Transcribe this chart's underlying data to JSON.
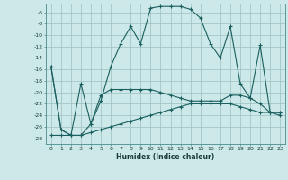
{
  "xlabel": "Humidex (Indice chaleur)",
  "ylabel": "",
  "background_color": "#cce8e8",
  "grid_color": "#9bbfbf",
  "line_color": "#1a5f5f",
  "xlim": [
    -0.5,
    23.5
  ],
  "ylim": [
    -29,
    -4.5
  ],
  "xticks": [
    0,
    1,
    2,
    3,
    4,
    5,
    6,
    7,
    8,
    9,
    10,
    11,
    12,
    13,
    14,
    15,
    16,
    17,
    18,
    19,
    20,
    21,
    22,
    23
  ],
  "yticks": [
    -28,
    -26,
    -24,
    -22,
    -20,
    -18,
    -16,
    -14,
    -12,
    -10,
    -8,
    -6
  ],
  "series1": [
    [
      0,
      -15.5
    ],
    [
      1,
      -26.5
    ],
    [
      2,
      -27.5
    ],
    [
      3,
      -18.5
    ],
    [
      4,
      -25.5
    ],
    [
      5,
      -21.5
    ],
    [
      6,
      -15.5
    ],
    [
      7,
      -11.5
    ],
    [
      8,
      -8.5
    ],
    [
      9,
      -11.5
    ],
    [
      10,
      -5.3
    ],
    [
      11,
      -5.0
    ],
    [
      12,
      -5.0
    ],
    [
      13,
      -5.0
    ],
    [
      14,
      -5.5
    ],
    [
      15,
      -7.0
    ],
    [
      16,
      -11.5
    ],
    [
      17,
      -14.0
    ],
    [
      18,
      -8.5
    ],
    [
      19,
      -18.5
    ],
    [
      20,
      -21.0
    ],
    [
      21,
      -11.8
    ],
    [
      22,
      -23.5
    ],
    [
      23,
      -23.5
    ]
  ],
  "series2": [
    [
      0,
      -15.5
    ],
    [
      1,
      -26.5
    ],
    [
      2,
      -27.5
    ],
    [
      3,
      -27.5
    ],
    [
      4,
      -25.5
    ],
    [
      5,
      -20.5
    ],
    [
      6,
      -19.5
    ],
    [
      7,
      -19.5
    ],
    [
      8,
      -19.5
    ],
    [
      9,
      -19.5
    ],
    [
      10,
      -19.5
    ],
    [
      11,
      -20.0
    ],
    [
      12,
      -20.5
    ],
    [
      13,
      -21.0
    ],
    [
      14,
      -21.5
    ],
    [
      15,
      -21.5
    ],
    [
      16,
      -21.5
    ],
    [
      17,
      -21.5
    ],
    [
      18,
      -20.5
    ],
    [
      19,
      -20.5
    ],
    [
      20,
      -21.0
    ],
    [
      21,
      -22.0
    ],
    [
      22,
      -23.5
    ],
    [
      23,
      -23.5
    ]
  ],
  "series3": [
    [
      0,
      -27.5
    ],
    [
      1,
      -27.5
    ],
    [
      2,
      -27.5
    ],
    [
      3,
      -27.5
    ],
    [
      4,
      -27.0
    ],
    [
      5,
      -26.5
    ],
    [
      6,
      -26.0
    ],
    [
      7,
      -25.5
    ],
    [
      8,
      -25.0
    ],
    [
      9,
      -24.5
    ],
    [
      10,
      -24.0
    ],
    [
      11,
      -23.5
    ],
    [
      12,
      -23.0
    ],
    [
      13,
      -22.5
    ],
    [
      14,
      -22.0
    ],
    [
      15,
      -22.0
    ],
    [
      16,
      -22.0
    ],
    [
      17,
      -22.0
    ],
    [
      18,
      -22.0
    ],
    [
      19,
      -22.5
    ],
    [
      20,
      -23.0
    ],
    [
      21,
      -23.5
    ],
    [
      22,
      -23.5
    ],
    [
      23,
      -24.0
    ]
  ]
}
